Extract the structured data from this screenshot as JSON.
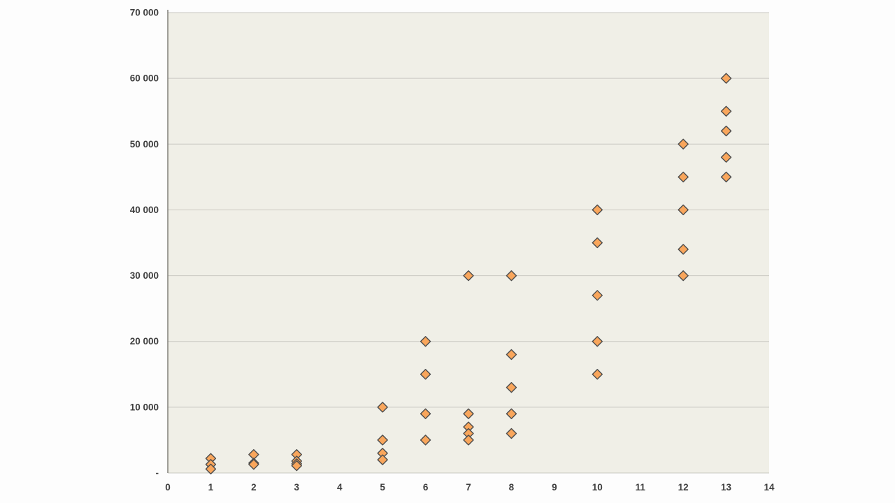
{
  "chart_data": {
    "type": "scatter",
    "title": "",
    "xlabel": "",
    "ylabel": "",
    "xlim": [
      0,
      14
    ],
    "ylim": [
      0,
      70000
    ],
    "grid": true,
    "legend": false,
    "x_ticks": [
      0,
      1,
      2,
      3,
      4,
      5,
      6,
      7,
      8,
      9,
      10,
      11,
      12,
      13,
      14
    ],
    "x_tick_labels": [
      "0",
      "1",
      "2",
      "3",
      "4",
      "5",
      "6",
      "7",
      "8",
      "9",
      "10",
      "11",
      "12",
      "13",
      "14"
    ],
    "y_ticks": [
      0,
      10000,
      20000,
      30000,
      40000,
      50000,
      60000,
      70000
    ],
    "y_tick_labels": [
      "-",
      "10 000",
      "20 000",
      "30 000",
      "40 000",
      "50 000",
      "60 000",
      "70 000"
    ],
    "points": [
      {
        "x": 1,
        "y": 2200
      },
      {
        "x": 1,
        "y": 1300
      },
      {
        "x": 1,
        "y": 600
      },
      {
        "x": 2,
        "y": 2800
      },
      {
        "x": 2,
        "y": 1500
      },
      {
        "x": 2,
        "y": 1300
      },
      {
        "x": 3,
        "y": 2800
      },
      {
        "x": 3,
        "y": 1800
      },
      {
        "x": 3,
        "y": 1400
      },
      {
        "x": 3,
        "y": 1100
      },
      {
        "x": 5,
        "y": 10000
      },
      {
        "x": 5,
        "y": 5000
      },
      {
        "x": 5,
        "y": 3000
      },
      {
        "x": 5,
        "y": 2000
      },
      {
        "x": 6,
        "y": 20000
      },
      {
        "x": 6,
        "y": 15000
      },
      {
        "x": 6,
        "y": 9000
      },
      {
        "x": 6,
        "y": 5000
      },
      {
        "x": 7,
        "y": 30000
      },
      {
        "x": 7,
        "y": 9000
      },
      {
        "x": 7,
        "y": 7000
      },
      {
        "x": 7,
        "y": 6000
      },
      {
        "x": 7,
        "y": 5000
      },
      {
        "x": 8,
        "y": 30000
      },
      {
        "x": 8,
        "y": 18000
      },
      {
        "x": 8,
        "y": 13000
      },
      {
        "x": 8,
        "y": 9000
      },
      {
        "x": 8,
        "y": 6000
      },
      {
        "x": 10,
        "y": 40000
      },
      {
        "x": 10,
        "y": 35000
      },
      {
        "x": 10,
        "y": 27000
      },
      {
        "x": 10,
        "y": 20000
      },
      {
        "x": 10,
        "y": 15000
      },
      {
        "x": 12,
        "y": 50000
      },
      {
        "x": 12,
        "y": 45000
      },
      {
        "x": 12,
        "y": 40000
      },
      {
        "x": 12,
        "y": 34000
      },
      {
        "x": 12,
        "y": 30000
      },
      {
        "x": 13,
        "y": 60000
      },
      {
        "x": 13,
        "y": 55000
      },
      {
        "x": 13,
        "y": 52000
      },
      {
        "x": 13,
        "y": 48000
      },
      {
        "x": 13,
        "y": 45000
      }
    ],
    "style": {
      "marker_shape": "diamond",
      "marker_fill": "#F9A65C",
      "marker_stroke": "#4d4d4d",
      "plot_bg": "#F0EFE7",
      "page_bg": "#FDFDFD",
      "grid_color": "#C9C8C2",
      "axis_color": "#77766f",
      "tick_label_color": "#3E3E3E"
    }
  }
}
